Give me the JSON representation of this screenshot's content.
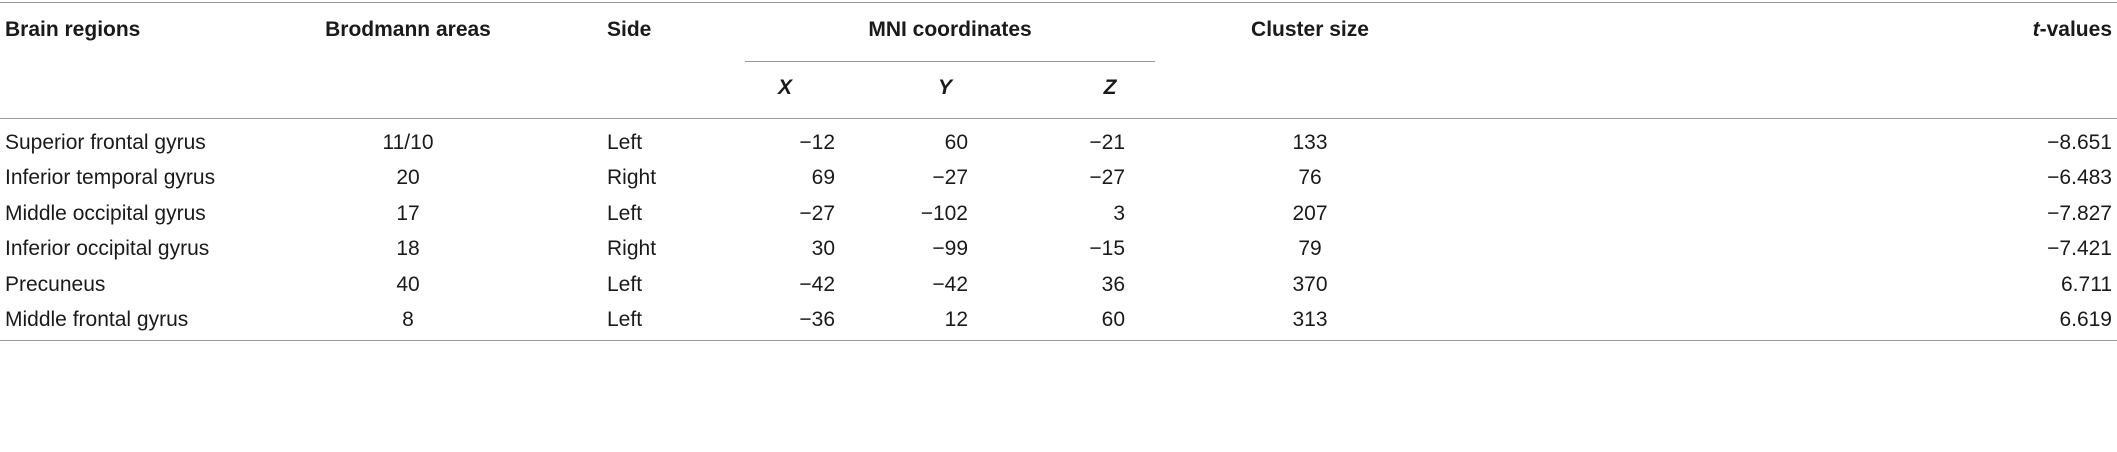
{
  "table": {
    "header": [
      "Brain regions",
      "Brodmann areas",
      "Side",
      "MNI coordinates",
      "Cluster size",
      {
        "italic": "t",
        "rest": "-values"
      }
    ],
    "subheader": [
      "X",
      "Y",
      "Z"
    ],
    "rows": [
      [
        "Superior frontal gyrus",
        "11/10",
        "Left",
        "−12",
        "60",
        "−21",
        "133",
        "−8.651"
      ],
      [
        "Inferior temporal gyrus",
        "20",
        "Right",
        "69",
        "−27",
        "−27",
        "76",
        "−6.483"
      ],
      [
        "Middle occipital gyrus",
        "17",
        "Left",
        "−27",
        "−102",
        "3",
        "207",
        "−7.827"
      ],
      [
        "Inferior occipital gyrus",
        "18",
        "Right",
        "30",
        "−99",
        "−15",
        "79",
        "−7.421"
      ],
      [
        "Precuneus",
        "40",
        "Left",
        "−42",
        "−42",
        "36",
        "370",
        "6.711"
      ],
      [
        "Middle frontal gyrus",
        "8",
        "Left",
        "−36",
        "12",
        "60",
        "313",
        "6.619"
      ]
    ]
  }
}
